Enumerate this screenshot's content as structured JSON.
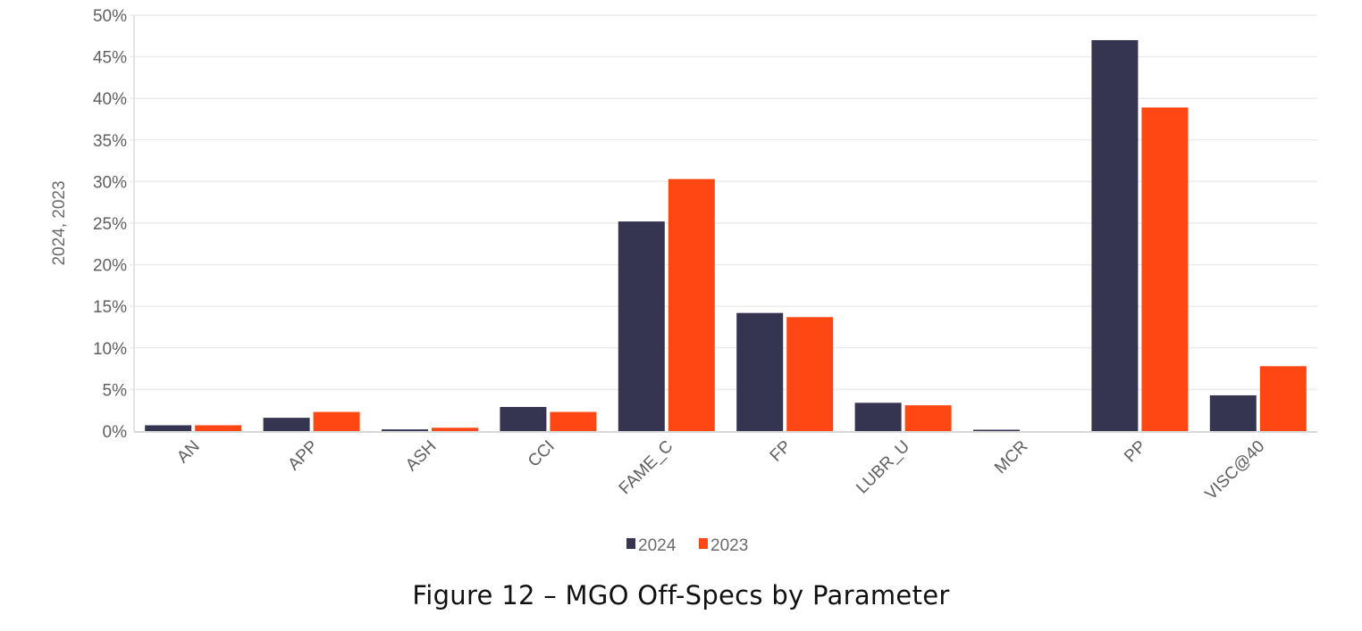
{
  "chart_data": {
    "type": "bar",
    "title": "",
    "caption": "Figure 12 – MGO Off-Specs by Parameter",
    "xlabel": "",
    "ylabel": "2024, 2023",
    "ylim": [
      0,
      50
    ],
    "yticks": [
      0,
      5,
      10,
      15,
      20,
      25,
      30,
      35,
      40,
      45,
      50
    ],
    "ytick_labels": [
      "0%",
      "5%",
      "10%",
      "15%",
      "20%",
      "25%",
      "30%",
      "35%",
      "40%",
      "45%",
      "50%"
    ],
    "grid": true,
    "legend_position": "bottom-center",
    "categories": [
      "AN",
      "APP",
      "ASH",
      "CCI",
      "FAME_C",
      "FP",
      "LUBR_U",
      "MCR",
      "PP",
      "VISC@40"
    ],
    "series": [
      {
        "name": "2024",
        "color": "#353451",
        "values": [
          0.7,
          1.6,
          0.2,
          2.9,
          25.2,
          14.2,
          3.4,
          0.1,
          47.0,
          4.3
        ]
      },
      {
        "name": "2023",
        "color": "#ff4713",
        "values": [
          0.7,
          2.3,
          0.4,
          2.3,
          30.3,
          13.7,
          3.1,
          0.0,
          38.9,
          7.8
        ]
      }
    ]
  }
}
